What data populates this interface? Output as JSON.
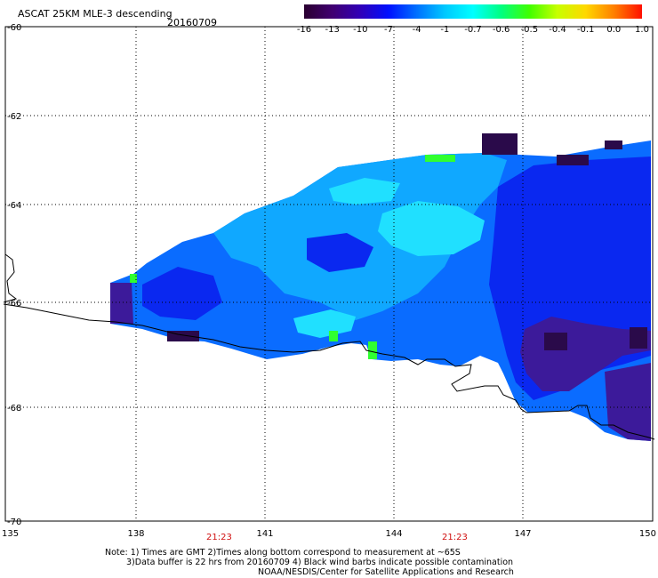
{
  "header": {
    "title": "ASCAT 25KM MLE-3 descending",
    "date": "20160709"
  },
  "colorbar": {
    "labels": [
      "-16",
      "-13",
      "-10",
      "-7",
      "-4",
      "-1",
      "-0.7",
      "-0.6",
      "-0.5",
      "-0.4",
      "-0.1",
      "0.0",
      "1.0"
    ],
    "colors": [
      "#2a0030",
      "#400070",
      "#3000b8",
      "#0010ff",
      "#0070ff",
      "#00c8ff",
      "#00ffff",
      "#00ff80",
      "#40ff00",
      "#c8ff00",
      "#ffd800",
      "#ff8000",
      "#ff1000"
    ]
  },
  "axes": {
    "lon_labels": [
      "135",
      "138",
      "141",
      "144",
      "147",
      "150"
    ],
    "lat_labels": [
      "-60",
      "-62",
      "-64",
      "-66",
      "-68",
      "-70"
    ],
    "time_labels": [
      "21:23",
      "21:23"
    ]
  },
  "colors": {
    "fill_dark": "#2a0a4a",
    "fill_purple": "#3c1a9a",
    "fill_blue": "#0a28f0",
    "fill_mid": "#0a6cff",
    "fill_light": "#10a8ff",
    "fill_cyan": "#20e0ff",
    "fill_green": "#30ff30",
    "coast": "#000000",
    "grid": "#000000",
    "time": "#d01010"
  },
  "notes": [
    "Note: 1) Times are GMT 2)Times along bottom correspond to measurement at ~65S",
    "3)Data buffer is 22 hrs from 20160709 4) Black wind barbs indicate possible contamination",
    "NOAA/NESDIS/Center for Satellite Applications and Research"
  ]
}
